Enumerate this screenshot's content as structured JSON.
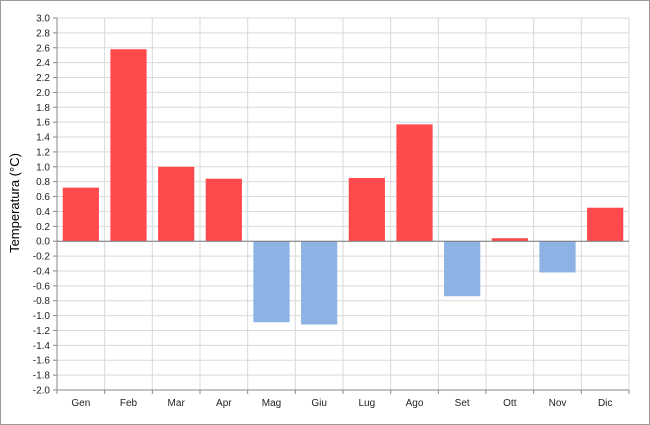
{
  "chart_data": {
    "type": "bar",
    "ylabel": "Temperatura (°C)",
    "categories": [
      "Gen",
      "Feb",
      "Mar",
      "Apr",
      "Mag",
      "Giu",
      "Lug",
      "Ago",
      "Set",
      "Ott",
      "Nov",
      "Dic"
    ],
    "values": [
      0.72,
      2.58,
      1.0,
      0.84,
      -1.09,
      -1.12,
      0.85,
      1.57,
      -0.74,
      0.04,
      -0.42,
      0.45
    ],
    "ylim": [
      -2.0,
      3.0
    ],
    "yticks": [
      "3.0",
      "2.8",
      "2.6",
      "2.4",
      "2.2",
      "2.0",
      "1.8",
      "1.6",
      "1.4",
      "1.2",
      "1.0",
      "0.8",
      "0.6",
      "0.4",
      "0.2",
      "0.0",
      "-0.2",
      "-0.4",
      "-0.6",
      "-0.8",
      "-1.0",
      "-1.2",
      "-1.4",
      "-1.6",
      "-1.8",
      "-2.0"
    ],
    "grid": true,
    "colors": {
      "positive": "#ff4a4d",
      "negative": "#8cb3e3"
    }
  }
}
